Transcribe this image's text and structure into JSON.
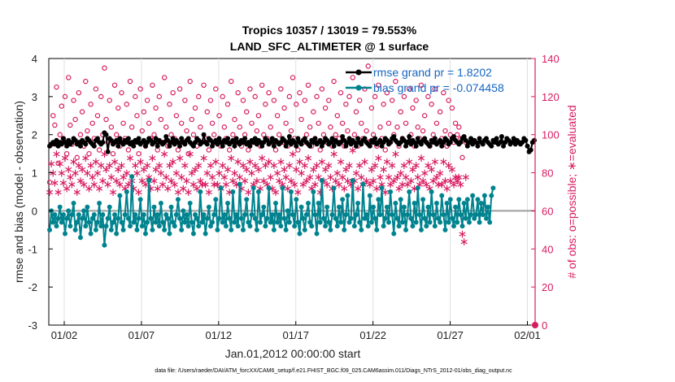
{
  "chart_data": {
    "type": "line",
    "title_line1": "Tropics 10357 / 13019 = 79.553%",
    "title_line2": "LAND_SFC_ALTIMETER @ 1 surface",
    "ylabel_left": "rmse and bias (model - observation)",
    "ylabel_right": "# of obs: o=possible; ∗=evaluated",
    "xlabel": "Jan.01,2012 00:00:00 start",
    "footnote": "data file: /Users/raeder/DAI/ATM_forcXX/CAM6_setup/f.e21.FHIST_BGC.f09_025.CAM6assim.011/Diags_NTrS_2012-01/obs_diag_output.nc",
    "ylim_left": [
      -3,
      4
    ],
    "ylim_right": [
      0,
      140
    ],
    "xlim": [
      0,
      31.5
    ],
    "yticks_left": [
      "4",
      "3",
      "2",
      "1",
      "0",
      "-1",
      "-2",
      "-3"
    ],
    "yticks_right": [
      "140",
      "120",
      "100",
      "80",
      "60",
      "40",
      "20",
      "0"
    ],
    "xtick_labels": [
      "01/02",
      "01/07",
      "01/12",
      "01/17",
      "01/22",
      "01/27",
      "02/01"
    ],
    "colors": {
      "rmse": "#000000",
      "bias": "#00838f",
      "obs": "#d81b60",
      "zero": "#9e9e9e",
      "legend_text": "#1565c0"
    },
    "legend": {
      "rmse": "rmse grand pr = 1.8202",
      "bias": "bias grand pr = -0.074458"
    },
    "series_rmse": [
      1.7,
      1.75,
      1.8,
      1.75,
      1.85,
      1.7,
      1.8,
      1.75,
      1.9,
      1.8,
      1.7,
      1.85,
      1.75,
      1.8,
      1.9,
      1.85,
      1.75,
      1.8,
      1.7,
      1.85,
      1.8,
      1.75,
      1.9,
      1.85,
      1.8,
      1.75,
      1.7,
      1.85,
      1.9,
      1.8,
      1.75,
      1.8,
      2.05,
      2.0,
      1.55,
      1.9,
      1.85,
      1.75,
      1.8,
      1.85,
      1.7,
      1.9,
      1.8,
      1.75,
      1.85,
      1.8,
      1.9,
      1.75,
      1.8,
      1.7,
      1.85,
      1.8,
      1.9,
      1.75,
      1.8,
      1.85,
      1.7,
      1.8,
      1.9,
      1.85,
      1.75,
      1.8,
      1.9,
      1.7,
      1.85,
      1.8,
      1.75,
      1.8,
      1.95,
      1.85,
      1.7,
      1.8,
      1.9,
      1.75,
      1.85,
      1.8,
      1.7,
      1.9,
      1.8,
      1.75,
      1.85,
      1.9,
      1.8,
      1.75,
      1.7,
      1.8,
      1.9,
      1.85,
      1.75,
      1.8,
      2.0,
      1.8,
      1.75,
      1.9,
      1.85,
      1.7,
      1.8,
      1.85,
      1.75,
      1.9,
      1.8,
      1.7,
      1.85,
      1.8,
      1.9,
      1.75,
      1.8,
      1.85,
      1.7,
      1.9,
      1.8,
      1.75,
      1.85,
      1.8,
      1.9,
      1.75,
      1.8,
      1.7,
      1.85,
      1.8,
      1.9,
      1.75,
      1.85,
      1.8,
      1.7,
      1.8,
      1.9,
      1.85,
      1.75,
      1.8,
      1.9,
      1.7,
      1.85,
      1.8,
      1.75,
      1.8,
      1.9,
      1.85,
      1.7,
      1.8,
      1.95,
      1.75,
      1.85,
      1.8,
      1.7,
      1.9,
      1.8,
      1.75,
      1.85,
      1.9,
      1.8,
      1.75,
      1.7,
      1.85,
      1.8,
      1.9,
      1.75,
      1.8,
      1.85,
      1.7,
      1.8,
      1.9,
      1.85,
      1.75,
      1.8,
      1.9,
      1.7,
      1.85,
      1.8,
      1.75,
      1.8,
      1.95,
      1.85,
      1.7,
      1.8,
      1.9,
      1.75,
      1.85,
      1.8,
      1.7,
      1.9,
      1.8,
      1.75,
      1.85,
      1.9,
      1.8,
      1.75,
      1.7,
      1.85,
      1.8,
      1.9,
      1.75,
      1.8,
      1.85,
      1.7,
      1.8,
      1.9,
      1.85,
      1.75,
      1.8,
      1.9,
      1.95,
      1.85,
      1.8,
      1.75,
      1.8,
      1.9,
      1.85,
      1.7,
      1.8,
      1.95,
      1.75,
      1.85,
      1.8,
      1.7,
      1.9,
      1.8,
      1.75,
      1.85,
      1.9,
      1.8,
      1.75,
      1.7,
      1.85,
      1.8,
      1.9,
      1.75,
      1.8,
      1.85,
      1.7,
      1.8,
      1.9,
      1.85,
      1.75,
      1.8,
      1.9,
      1.95,
      1.85,
      1.8,
      1.75,
      1.8,
      1.9,
      1.95,
      1.85,
      1.7,
      1.8,
      1.9,
      1.75,
      1.85,
      1.8,
      1.7,
      1.9,
      1.8,
      1.75,
      1.85,
      1.9,
      1.8,
      1.75,
      1.7,
      1.85,
      1.8,
      1.9,
      1.75,
      1.8,
      1.95,
      1.7,
      1.8,
      1.9,
      1.85,
      1.75,
      1.8,
      1.9,
      1.75,
      1.85,
      1.8,
      1.75,
      1.8,
      1.9,
      1.85,
      1.7,
      1.55,
      1.6,
      1.8,
      1.85
    ],
    "series_bias": [
      -0.5,
      0,
      -0.3,
      -0.1,
      -0.4,
      -0.2,
      0.1,
      -0.3,
      -0.1,
      -0.6,
      -0.2,
      0,
      -0.4,
      -0.1,
      0.2,
      -0.5,
      -0.3,
      -0.1,
      -0.7,
      -0.2,
      0,
      -0.4,
      0.1,
      -0.3,
      -0.6,
      -0.2,
      -0.1,
      -0.5,
      -0.3,
      0.2,
      -0.4,
      -0.1,
      -0.9,
      -0.4,
      -0.2,
      0.1,
      -0.5,
      -0.3,
      -0.1,
      -0.6,
      -0.2,
      0.4,
      -0.3,
      -0.5,
      -0.1,
      0.5,
      -0.2,
      -0.4,
      0.9,
      -0.3,
      -0.1,
      -0.5,
      -0.2,
      0.3,
      -0.4,
      -0.1,
      -0.6,
      -0.3,
      0.8,
      -0.2,
      -0.5,
      0.1,
      -0.3,
      -0.1,
      -0.4,
      0.2,
      -0.3,
      -0.5,
      -0.1,
      -0.2,
      -0.6,
      0.1,
      -0.3,
      -0.4,
      -0.1,
      0.3,
      -0.2,
      -0.5,
      0,
      -0.3,
      -0.1,
      -0.4,
      0.2,
      -0.3,
      -0.6,
      -0.1,
      -0.2,
      -0.4,
      0.5,
      -0.3,
      -0.1,
      -0.6,
      -0.2,
      0.1,
      -0.4,
      -0.3,
      -0.1,
      0.3,
      -0.5,
      -0.2,
      0.6,
      -0.3,
      -0.1,
      -0.4,
      0.2,
      -0.2,
      -0.5,
      0.5,
      -0.3,
      -0.1,
      -0.4,
      0.7,
      -0.2,
      -0.5,
      -0.1,
      0.3,
      -0.3,
      -0.4,
      -0.1,
      0.6,
      -0.2,
      -0.5,
      0.5,
      -0.3,
      -0.1,
      0.1,
      -0.4,
      -0.2,
      0.6,
      -0.3,
      -0.1,
      -0.5,
      0.2,
      -0.3,
      -0.1,
      -0.4,
      0.6,
      -0.2,
      -0.5,
      0,
      -0.3,
      0.5,
      -0.1,
      -0.4,
      0.3,
      -0.3,
      -0.6,
      0.1,
      -0.2,
      -0.5,
      -0.1,
      0.2,
      -0.3,
      -0.4,
      0.5,
      -0.1,
      -0.6,
      0.2,
      -0.3,
      0.8,
      -0.2,
      -0.4,
      0.1,
      -0.3,
      -0.5,
      -0.1,
      0.6,
      -0.2,
      -0.4,
      0.1,
      -0.3,
      0.3,
      -0.5,
      -0.1,
      0.4,
      -0.3,
      -0.2,
      0.8,
      -0.4,
      -0.1,
      0.2,
      -0.3,
      -0.5,
      0.7,
      -0.2,
      -0.1,
      -0.4,
      0.4,
      -0.3,
      0.1,
      -0.2,
      -0.5,
      0.3,
      -0.1,
      0.6,
      -0.4,
      -0.2,
      0.1,
      -0.3,
      0.5,
      -0.1,
      -0.6,
      0.2,
      -0.2,
      -0.4,
      0.3,
      -0.3,
      0.1,
      -0.5,
      -0.1,
      0.5,
      -0.2,
      -0.4,
      0.2,
      -0.3,
      0.6,
      -0.1,
      -0.5,
      0.3,
      -0.2,
      -0.4,
      0.1,
      -0.3,
      0.5,
      -0.1,
      -0.4,
      0.2,
      -0.2,
      -0.3,
      0.4,
      -0.1,
      -0.5,
      0.2,
      -0.3,
      0.3,
      -0.2,
      -0.4,
      0.1,
      -0.3,
      0.3,
      -0.1,
      -0.4,
      0.2,
      -0.2,
      0.3,
      -0.3,
      -0.1,
      0.4,
      -0.2,
      -0.1,
      0.3,
      -0.3,
      0.2,
      -0.1,
      0.4,
      -0.2,
      0.1,
      -0.3,
      0.4,
      0.6
    ],
    "series_possible": [
      75,
      95,
      110,
      105,
      125,
      85,
      100,
      115,
      98,
      120,
      90,
      130,
      105,
      95,
      118,
      108,
      88,
      122,
      100,
      112,
      94,
      128,
      102,
      90,
      116,
      106,
      98,
      124,
      110,
      92,
      120,
      100,
      135,
      108,
      96,
      118,
      104,
      90,
      126,
      100,
      114,
      94,
      122,
      106,
      98,
      116,
      92,
      128,
      104,
      96,
      120,
      110,
      90,
      124,
      102,
      112,
      94,
      118,
      106,
      98,
      126,
      100,
      114,
      92,
      120,
      108,
      96,
      130,
      104,
      94,
      116,
      100,
      122,
      98,
      110,
      92,
      124,
      106,
      96,
      118,
      102,
      90,
      128,
      108,
      100,
      114,
      94,
      120,
      104,
      96,
      126,
      98,
      112,
      92,
      118,
      106,
      100,
      124,
      96,
      110,
      94,
      120,
      104,
      98,
      116,
      92,
      128,
      100,
      108,
      96,
      122,
      104,
      94,
      118,
      100,
      112,
      92,
      124,
      106,
      96,
      120,
      102,
      110,
      94,
      126,
      100,
      116,
      98,
      122,
      104,
      96,
      118,
      92,
      110,
      100,
      124,
      96,
      114,
      106,
      94,
      120,
      102,
      130,
      98,
      116,
      92,
      122,
      108,
      96,
      118,
      100,
      126,
      104,
      94,
      112,
      98,
      120,
      106,
      92,
      124,
      100,
      114,
      96,
      118,
      104,
      94,
      128,
      100,
      110,
      98,
      122,
      106,
      94,
      116,
      102,
      120,
      96,
      130,
      100,
      112,
      94,
      118,
      106,
      98,
      124,
      102,
      136,
      96,
      114,
      100,
      120,
      94,
      126,
      104,
      98,
      116,
      92,
      122,
      106,
      96,
      118,
      100,
      128,
      104,
      94,
      112,
      98,
      120,
      106,
      96,
      124,
      100,
      114,
      94,
      118,
      104,
      98,
      126,
      102,
      110,
      96,
      120,
      94,
      116,
      100,
      124,
      106,
      96,
      112,
      98,
      122,
      102,
      94,
      118,
      100,
      114,
      96,
      106,
      100,
      104,
      98,
      88,
      98,
      96
    ],
    "series_evaluated": [
      70,
      85,
      80,
      75,
      90,
      70,
      85,
      80,
      75,
      88,
      72,
      82,
      78,
      74,
      86,
      80,
      70,
      84,
      76,
      82,
      74,
      88,
      80,
      72,
      84,
      78,
      74,
      86,
      80,
      72,
      84,
      76,
      90,
      82,
      74,
      84,
      78,
      70,
      86,
      76,
      82,
      74,
      84,
      78,
      72,
      80,
      74,
      88,
      76,
      72,
      84,
      80,
      70,
      86,
      76,
      82,
      74,
      84,
      78,
      72,
      88,
      76,
      82,
      72,
      84,
      80,
      74,
      90,
      78,
      72,
      84,
      76,
      86,
      74,
      80,
      70,
      88,
      78,
      72,
      84,
      76,
      70,
      90,
      80,
      74,
      82,
      72,
      84,
      76,
      74,
      88,
      74,
      80,
      70,
      84,
      78,
      74,
      86,
      74,
      80,
      72,
      84,
      78,
      74,
      82,
      70,
      88,
      76,
      80,
      74,
      86,
      78,
      72,
      84,
      76,
      82,
      70,
      86,
      80,
      74,
      84,
      76,
      82,
      72,
      88,
      76,
      84,
      74,
      86,
      78,
      72,
      84,
      70,
      80,
      76,
      86,
      74,
      82,
      78,
      72,
      84,
      76,
      90,
      74,
      82,
      70,
      86,
      80,
      74,
      84,
      76,
      88,
      78,
      72,
      82,
      74,
      84,
      78,
      70,
      86,
      76,
      82,
      74,
      84,
      78,
      72,
      90,
      76,
      80,
      74,
      86,
      78,
      72,
      82,
      76,
      84,
      74,
      92,
      76,
      80,
      72,
      84,
      78,
      74,
      86,
      76,
      96,
      74,
      82,
      76,
      84,
      72,
      88,
      78,
      74,
      82,
      70,
      86,
      78,
      74,
      84,
      76,
      90,
      78,
      72,
      80,
      74,
      84,
      78,
      74,
      86,
      76,
      82,
      72,
      84,
      78,
      74,
      88,
      76,
      80,
      74,
      84,
      72,
      82,
      76,
      86,
      78,
      74,
      80,
      74,
      86,
      76,
      72,
      84,
      76,
      82,
      74,
      78,
      76,
      78,
      74,
      48,
      44,
      78
    ]
  }
}
